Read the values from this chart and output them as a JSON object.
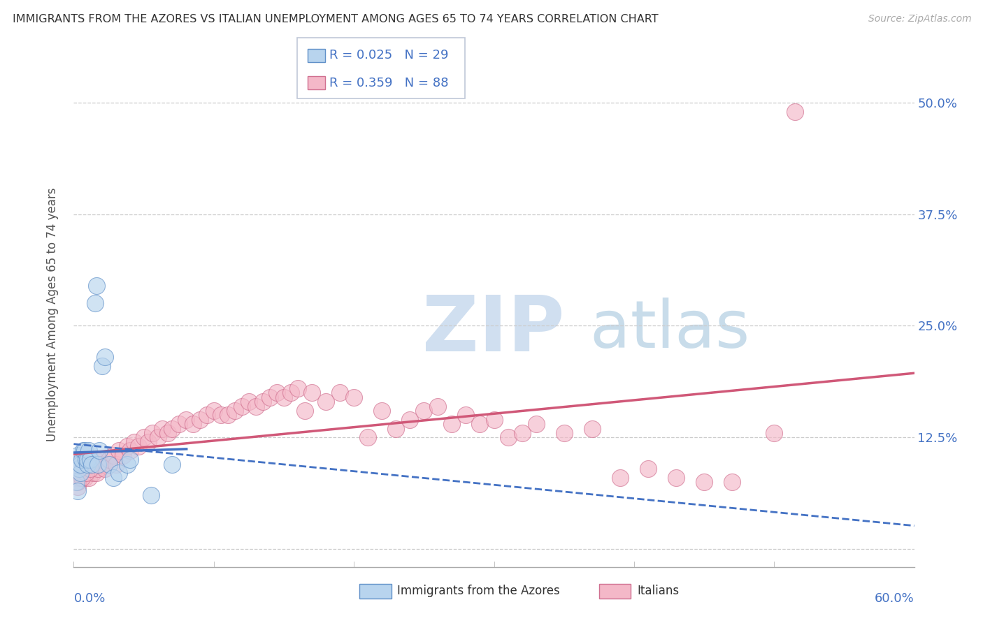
{
  "title": "IMMIGRANTS FROM THE AZORES VS ITALIAN UNEMPLOYMENT AMONG AGES 65 TO 74 YEARS CORRELATION CHART",
  "source": "Source: ZipAtlas.com",
  "ylabel": "Unemployment Among Ages 65 to 74 years",
  "yticks": [
    0.0,
    0.125,
    0.25,
    0.375,
    0.5
  ],
  "ytick_labels": [
    "",
    "12.5%",
    "25.0%",
    "37.5%",
    "50.0%"
  ],
  "xlim": [
    0.0,
    0.6
  ],
  "ylim": [
    -0.02,
    0.545
  ],
  "legend_azores_R": "0.025",
  "legend_azores_N": "29",
  "legend_italians_R": "0.359",
  "legend_italians_N": "88",
  "color_azores_fill": "#b8d4ee",
  "color_azores_edge": "#6090c8",
  "color_italians_fill": "#f4b8c8",
  "color_italians_edge": "#d07090",
  "color_azores_line": "#4472c4",
  "color_italians_line": "#d05878",
  "azores_x": [
    0.001,
    0.002,
    0.003,
    0.003,
    0.004,
    0.005,
    0.005,
    0.006,
    0.007,
    0.008,
    0.009,
    0.01,
    0.01,
    0.011,
    0.012,
    0.013,
    0.015,
    0.016,
    0.017,
    0.018,
    0.02,
    0.022,
    0.025,
    0.028,
    0.032,
    0.038,
    0.04,
    0.055,
    0.07
  ],
  "azores_y": [
    0.095,
    0.075,
    0.065,
    0.105,
    0.09,
    0.085,
    0.095,
    0.1,
    0.11,
    0.11,
    0.1,
    0.095,
    0.1,
    0.11,
    0.1,
    0.095,
    0.275,
    0.295,
    0.095,
    0.11,
    0.205,
    0.215,
    0.095,
    0.08,
    0.085,
    0.095,
    0.1,
    0.06,
    0.095
  ],
  "italians_x": [
    0.001,
    0.002,
    0.003,
    0.003,
    0.004,
    0.005,
    0.006,
    0.007,
    0.007,
    0.008,
    0.009,
    0.01,
    0.011,
    0.012,
    0.013,
    0.014,
    0.015,
    0.016,
    0.017,
    0.018,
    0.02,
    0.022,
    0.025,
    0.028,
    0.03,
    0.032,
    0.035,
    0.038,
    0.04,
    0.043,
    0.046,
    0.05,
    0.053,
    0.056,
    0.06,
    0.063,
    0.067,
    0.07,
    0.075,
    0.08,
    0.085,
    0.09,
    0.095,
    0.1,
    0.105,
    0.11,
    0.115,
    0.12,
    0.125,
    0.13,
    0.135,
    0.14,
    0.145,
    0.15,
    0.155,
    0.16,
    0.165,
    0.17,
    0.18,
    0.19,
    0.2,
    0.21,
    0.22,
    0.23,
    0.24,
    0.25,
    0.26,
    0.27,
    0.28,
    0.29,
    0.3,
    0.31,
    0.32,
    0.33,
    0.35,
    0.37,
    0.39,
    0.41,
    0.43,
    0.45,
    0.47,
    0.5,
    0.003,
    0.006,
    0.009,
    0.012,
    0.515
  ],
  "italians_y": [
    0.08,
    0.085,
    0.07,
    0.095,
    0.08,
    0.08,
    0.09,
    0.095,
    0.085,
    0.08,
    0.095,
    0.095,
    0.08,
    0.09,
    0.095,
    0.085,
    0.1,
    0.085,
    0.09,
    0.1,
    0.095,
    0.09,
    0.1,
    0.105,
    0.095,
    0.11,
    0.105,
    0.115,
    0.11,
    0.12,
    0.115,
    0.125,
    0.12,
    0.13,
    0.125,
    0.135,
    0.13,
    0.135,
    0.14,
    0.145,
    0.14,
    0.145,
    0.15,
    0.155,
    0.15,
    0.15,
    0.155,
    0.16,
    0.165,
    0.16,
    0.165,
    0.17,
    0.175,
    0.17,
    0.175,
    0.18,
    0.155,
    0.175,
    0.165,
    0.175,
    0.17,
    0.125,
    0.155,
    0.135,
    0.145,
    0.155,
    0.16,
    0.14,
    0.15,
    0.14,
    0.145,
    0.125,
    0.13,
    0.14,
    0.13,
    0.135,
    0.08,
    0.09,
    0.08,
    0.075,
    0.075,
    0.13,
    0.075,
    0.08,
    0.085,
    0.09,
    0.49
  ]
}
